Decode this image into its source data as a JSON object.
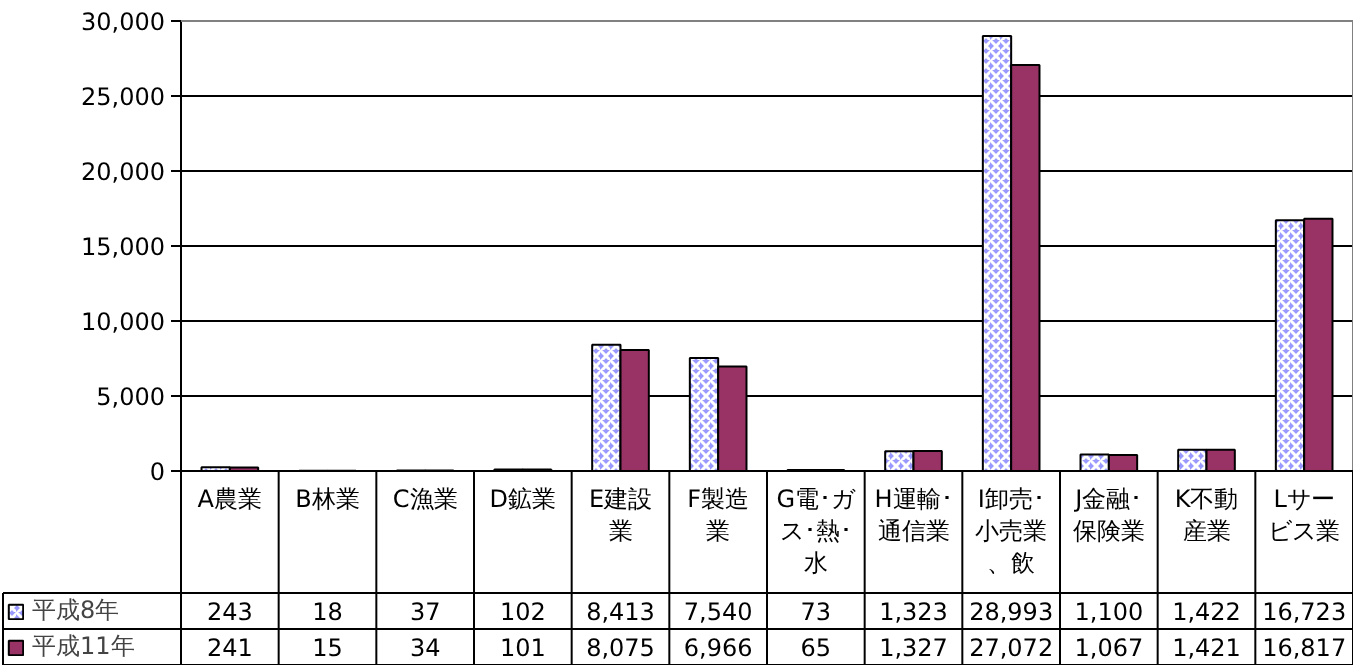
{
  "chart_data": {
    "type": "bar",
    "categories": [
      "A農業",
      "B林業",
      "C漁業",
      "D鉱業",
      "E建設業",
      "F製造業",
      "G電･ガス･熱･水",
      "H運輸･通信業",
      "I卸売･小売業、飲",
      "J金融･保険業",
      "K不動産業",
      "Lサービス業"
    ],
    "series": [
      {
        "name": "平成8年",
        "color": "#9999ff",
        "values": [
          243,
          18,
          37,
          102,
          8413,
          7540,
          73,
          1323,
          28993,
          1100,
          1422,
          16723
        ],
        "value_labels": [
          "243",
          "18",
          "37",
          "102",
          "8,413",
          "7,540",
          "73",
          "1,323",
          "28,993",
          "1,100",
          "1,422",
          "16,723"
        ]
      },
      {
        "name": "平成11年",
        "color": "#993366",
        "values": [
          241,
          15,
          34,
          101,
          8075,
          6966,
          65,
          1327,
          27072,
          1067,
          1421,
          16817
        ],
        "value_labels": [
          "241",
          "15",
          "34",
          "101",
          "8,075",
          "6,966",
          "65",
          "1,327",
          "27,072",
          "1,067",
          "1,421",
          "16,817"
        ]
      }
    ],
    "ylim": [
      0,
      30000
    ],
    "yticks": [
      {
        "value": 0,
        "label": "0"
      },
      {
        "value": 5000,
        "label": "5,000"
      },
      {
        "value": 10000,
        "label": "10,000"
      },
      {
        "value": 15000,
        "label": "15,000"
      },
      {
        "value": 20000,
        "label": "20,000"
      },
      {
        "value": 25000,
        "label": "25,000"
      },
      {
        "value": 30000,
        "label": "30,000"
      }
    ],
    "grid": "y",
    "legend": "bottom left"
  }
}
